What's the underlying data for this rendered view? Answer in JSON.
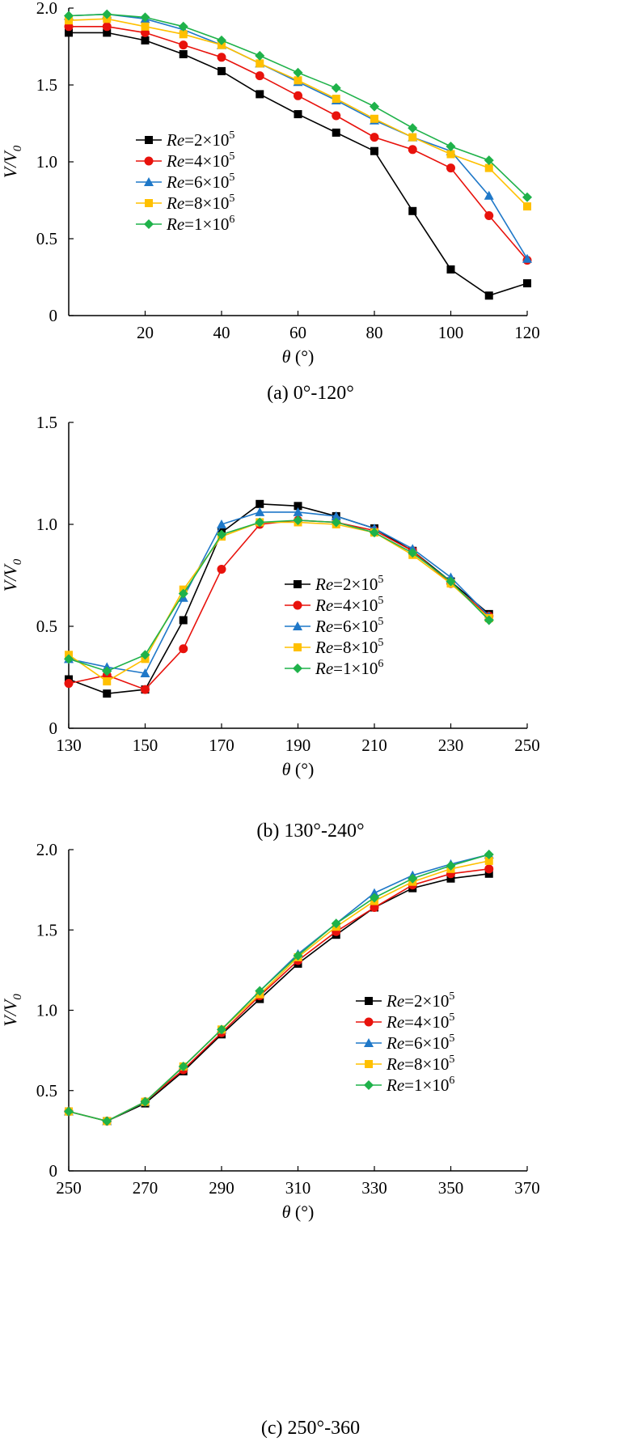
{
  "series_styles": [
    {
      "key": "re2e5",
      "color": "#000000",
      "marker": "square"
    },
    {
      "key": "re4e5",
      "color": "#e8120c",
      "marker": "circle"
    },
    {
      "key": "re6e5",
      "color": "#1f78c8",
      "marker": "triangle"
    },
    {
      "key": "re8e5",
      "color": "#ffc000",
      "marker": "square"
    },
    {
      "key": "re1e6",
      "color": "#1fb24a",
      "marker": "diamond"
    }
  ],
  "legend_labels": [
    {
      "italic": "Re",
      "base": "=2×10",
      "exp": "5"
    },
    {
      "italic": "Re",
      "base": "=4×10",
      "exp": "5"
    },
    {
      "italic": "Re",
      "base": "=6×10",
      "exp": "5"
    },
    {
      "italic": "Re",
      "base": "=8×10",
      "exp": "5"
    },
    {
      "italic": "Re",
      "base": "=1×10",
      "exp": "6"
    }
  ],
  "chart_data": [
    {
      "type": "line",
      "caption": "(a) 0°-120°",
      "ylabel_main": "V/V",
      "ylabel_sub": "0",
      "xlabel_symbol": "θ",
      "xlabel_unit": " (°)",
      "xlim": [
        0,
        120
      ],
      "ylim": [
        0,
        2.0
      ],
      "xticks": [
        20,
        40,
        60,
        80,
        100,
        120
      ],
      "yticks": [
        0,
        0.5,
        1.0,
        1.5,
        2.0
      ],
      "ytick_labels": [
        "0",
        "0.5",
        "1.0",
        "1.5",
        "2.0"
      ],
      "x": [
        0,
        10,
        20,
        30,
        40,
        50,
        60,
        70,
        80,
        90,
        100,
        110,
        120
      ],
      "legend_position": "middle-left",
      "series": [
        {
          "name": "Re=2×10^5",
          "values": [
            1.84,
            1.84,
            1.79,
            1.7,
            1.59,
            1.44,
            1.31,
            1.19,
            1.07,
            0.68,
            0.3,
            0.13,
            0.21
          ]
        },
        {
          "name": "Re=4×10^5",
          "values": [
            1.88,
            1.88,
            1.84,
            1.76,
            1.68,
            1.56,
            1.43,
            1.3,
            1.16,
            1.08,
            0.96,
            0.65,
            0.36
          ]
        },
        {
          "name": "Re=6×10^5",
          "values": [
            1.95,
            1.96,
            1.93,
            1.86,
            1.76,
            1.64,
            1.52,
            1.4,
            1.27,
            1.16,
            1.07,
            0.78,
            0.37
          ]
        },
        {
          "name": "Re=8×10^5",
          "values": [
            1.92,
            1.93,
            1.88,
            1.83,
            1.76,
            1.64,
            1.53,
            1.41,
            1.28,
            1.16,
            1.05,
            0.96,
            0.71
          ]
        },
        {
          "name": "Re=1×10^6",
          "values": [
            1.95,
            1.96,
            1.94,
            1.88,
            1.79,
            1.69,
            1.58,
            1.48,
            1.36,
            1.22,
            1.1,
            1.01,
            0.77
          ]
        }
      ]
    },
    {
      "type": "line",
      "caption": "(b) 130°-240°",
      "ylabel_main": "V/V",
      "ylabel_sub": "0",
      "xlabel_symbol": "θ",
      "xlabel_unit": " (°)",
      "xlim": [
        130,
        250
      ],
      "ylim": [
        0,
        1.5
      ],
      "xticks": [
        130,
        150,
        170,
        190,
        210,
        230,
        250
      ],
      "yticks": [
        0,
        0.5,
        1.0,
        1.5
      ],
      "ytick_labels": [
        "0",
        "0.5",
        "1.0",
        "1.5"
      ],
      "x": [
        130,
        140,
        150,
        160,
        170,
        180,
        190,
        200,
        210,
        220,
        230,
        240
      ],
      "legend_position": "center-right",
      "series": [
        {
          "name": "Re=2×10^5",
          "values": [
            0.24,
            0.17,
            0.19,
            0.53,
            0.96,
            1.1,
            1.09,
            1.04,
            0.98,
            0.87,
            0.72,
            0.56
          ]
        },
        {
          "name": "Re=4×10^5",
          "values": [
            0.22,
            0.26,
            0.19,
            0.39,
            0.78,
            1.0,
            1.02,
            1.01,
            0.97,
            0.87,
            0.71,
            0.55
          ]
        },
        {
          "name": "Re=6×10^5",
          "values": [
            0.34,
            0.3,
            0.27,
            0.64,
            1.0,
            1.06,
            1.06,
            1.04,
            0.98,
            0.88,
            0.74,
            0.55
          ]
        },
        {
          "name": "Re=8×10^5",
          "values": [
            0.36,
            0.23,
            0.34,
            0.68,
            0.94,
            1.01,
            1.01,
            1.0,
            0.96,
            0.85,
            0.71,
            0.54
          ]
        },
        {
          "name": "Re=1×10^6",
          "values": [
            0.34,
            0.28,
            0.36,
            0.66,
            0.95,
            1.01,
            1.02,
            1.01,
            0.96,
            0.86,
            0.72,
            0.53
          ]
        }
      ]
    },
    {
      "type": "line",
      "caption": "(c) 250°-360",
      "ylabel_main": "V/V",
      "ylabel_sub": "0",
      "xlabel_symbol": "θ",
      "xlabel_unit": " (°)",
      "xlim": [
        250,
        370
      ],
      "ylim": [
        0,
        2.0
      ],
      "xticks": [
        250,
        270,
        290,
        310,
        330,
        350,
        370
      ],
      "yticks": [
        0,
        0.5,
        1.0,
        1.5,
        2.0
      ],
      "ytick_labels": [
        "0",
        "0.5",
        "1.0",
        "1.5",
        "2.0"
      ],
      "x": [
        250,
        260,
        270,
        280,
        290,
        300,
        310,
        320,
        330,
        340,
        350,
        360
      ],
      "legend_position": "center-right",
      "series": [
        {
          "name": "Re=2×10^5",
          "values": [
            0.37,
            0.31,
            0.42,
            0.62,
            0.85,
            1.07,
            1.29,
            1.47,
            1.64,
            1.76,
            1.82,
            1.85
          ]
        },
        {
          "name": "Re=4×10^5",
          "values": [
            0.37,
            0.31,
            0.43,
            0.63,
            0.86,
            1.09,
            1.31,
            1.49,
            1.64,
            1.78,
            1.85,
            1.88
          ]
        },
        {
          "name": "Re=6×10^5",
          "values": [
            0.37,
            0.31,
            0.43,
            0.65,
            0.88,
            1.12,
            1.35,
            1.54,
            1.73,
            1.84,
            1.91,
            1.97
          ]
        },
        {
          "name": "Re=8×10^5",
          "values": [
            0.37,
            0.31,
            0.43,
            0.65,
            0.88,
            1.1,
            1.33,
            1.52,
            1.68,
            1.8,
            1.88,
            1.93
          ]
        },
        {
          "name": "Re=1×10^6",
          "values": [
            0.37,
            0.31,
            0.43,
            0.65,
            0.88,
            1.12,
            1.34,
            1.54,
            1.7,
            1.82,
            1.9,
            1.97
          ]
        }
      ]
    }
  ]
}
